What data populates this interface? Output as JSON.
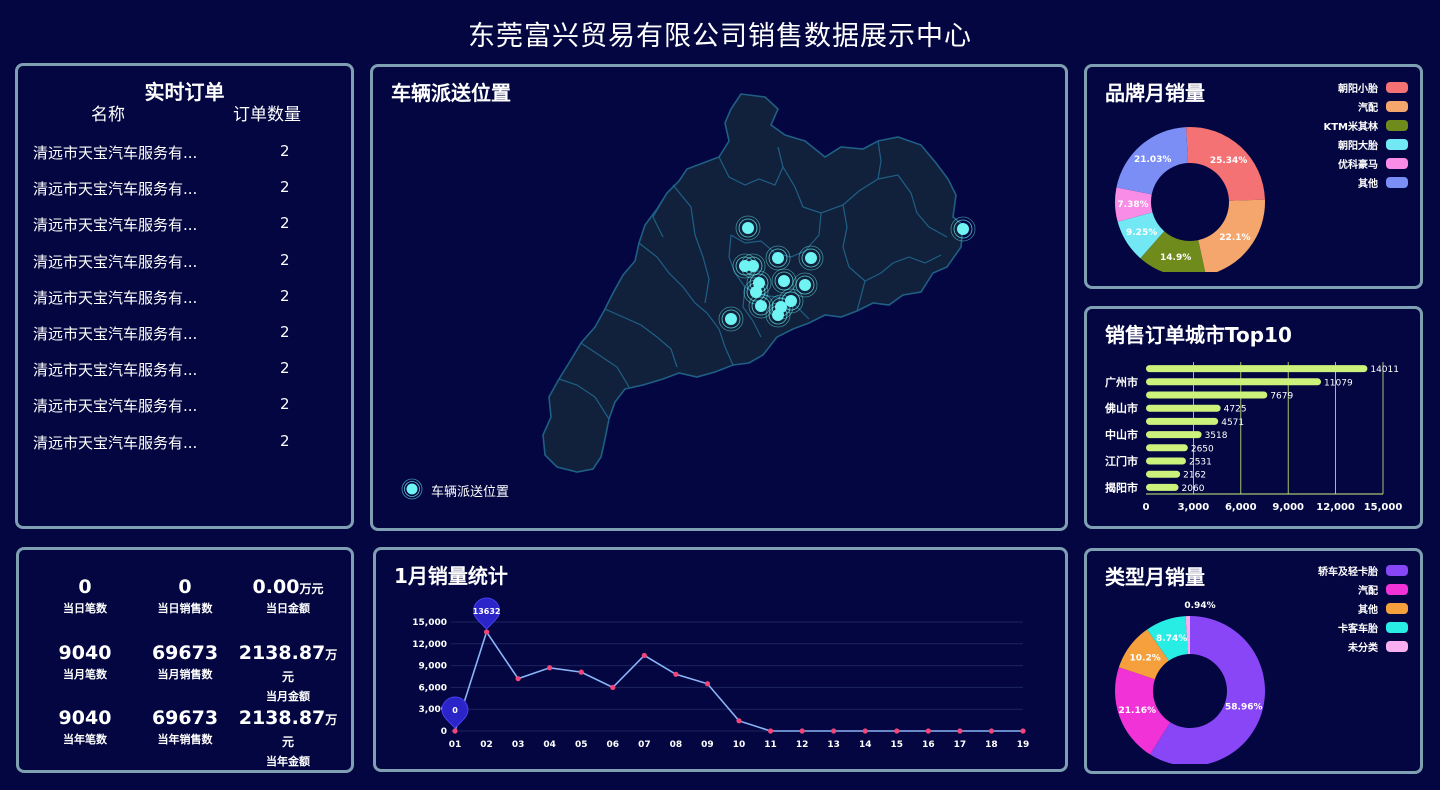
{
  "title": "东莞富兴贸易有限公司销售数据展示中心",
  "orders": {
    "title": "实时订单",
    "col_name": "名称",
    "col_count": "订单数量",
    "rows": [
      {
        "name": "清远市天宝汽车服务有...",
        "count": "2"
      },
      {
        "name": "清远市天宝汽车服务有...",
        "count": "2"
      },
      {
        "name": "清远市天宝汽车服务有...",
        "count": "2"
      },
      {
        "name": "清远市天宝汽车服务有...",
        "count": "2"
      },
      {
        "name": "清远市天宝汽车服务有...",
        "count": "2"
      },
      {
        "name": "清远市天宝汽车服务有...",
        "count": "2"
      },
      {
        "name": "清远市天宝汽车服务有...",
        "count": "2"
      },
      {
        "name": "清远市天宝汽车服务有...",
        "count": "2"
      },
      {
        "name": "清远市天宝汽车服务有...",
        "count": "2"
      }
    ]
  },
  "map": {
    "title": "车辆派送位置",
    "legend": "车辆派送位置",
    "point_color": "#6ff3f3",
    "region_fill": "#11213b",
    "region_stroke": "#1f5f86"
  },
  "stats": [
    {
      "value": "0",
      "unit": "",
      "label": "当日笔数"
    },
    {
      "value": "0",
      "unit": "",
      "label": "当日销售数"
    },
    {
      "value": "0.00",
      "unit": "万元",
      "label": "当日金额"
    },
    {
      "value": "9040",
      "unit": "",
      "label": "当月笔数"
    },
    {
      "value": "69673",
      "unit": "",
      "label": "当月销售数"
    },
    {
      "value": "2138.87",
      "unit": "万元",
      "label": "当月金额"
    },
    {
      "value": "9040",
      "unit": "",
      "label": "当年笔数"
    },
    {
      "value": "69673",
      "unit": "",
      "label": "当年销售数"
    },
    {
      "value": "2138.87",
      "unit": "万元",
      "label": "当年金额"
    }
  ],
  "brand": {
    "title": "品牌月销量",
    "chart_data": {
      "type": "pie",
      "labels": [
        "朝阳小胎",
        "汽配",
        "KTM米其林",
        "朝阳大胎",
        "优科豪马",
        "其他"
      ],
      "values": [
        25.34,
        22.1,
        14.9,
        9.25,
        7.38,
        21.03
      ],
      "value_labels": [
        "25.34%",
        "22.1%",
        "14.9%",
        "9.25%",
        "7.38%",
        "21.03%"
      ],
      "colors": [
        "#f47174",
        "#f4a66d",
        "#6f8b1c",
        "#72e8f4",
        "#f88ce6",
        "#7b8ef6"
      ]
    }
  },
  "city": {
    "title": "销售订单城市Top10",
    "chart_data": {
      "type": "bar",
      "orientation": "horizontal",
      "values": [
        14011,
        11079,
        7679,
        4725,
        4571,
        3518,
        2650,
        2531,
        2162,
        2060
      ],
      "category_labels": [
        "",
        "广州市",
        "",
        "佛山市",
        "",
        "中山市",
        "",
        "江门市",
        "",
        "揭阳市"
      ],
      "xlim": [
        0,
        15000
      ],
      "xticks": [
        "0",
        "3,000",
        "6,000",
        "9,000",
        "12,000",
        "15,000"
      ],
      "xtick_values": [
        0,
        3000,
        6000,
        9000,
        12000,
        15000
      ],
      "bar_color": "#cdf27c",
      "grid": true
    }
  },
  "monthly": {
    "title": "1月销量统计",
    "chart_data": {
      "type": "line",
      "x": [
        "01",
        "02",
        "03",
        "04",
        "05",
        "06",
        "07",
        "08",
        "09",
        "10",
        "11",
        "12",
        "13",
        "14",
        "15",
        "16",
        "17",
        "18",
        "19"
      ],
      "y": [
        0,
        13632,
        7200,
        8700,
        8100,
        6000,
        10400,
        7800,
        6500,
        1400,
        0,
        0,
        0,
        0,
        0,
        0,
        0,
        0,
        0
      ],
      "ylim": [
        0,
        15000
      ],
      "yticks": [
        "0",
        "3,000",
        "6,000",
        "9,000",
        "12,000",
        "15,000"
      ],
      "ytick_values": [
        0,
        3000,
        6000,
        9000,
        12000,
        15000
      ],
      "markers": [
        {
          "label": "13632",
          "index": 1
        },
        {
          "label": "0",
          "index": 0
        }
      ],
      "line_color": "#8ab4f8",
      "point_color": "#f4457a",
      "grid": true
    }
  },
  "type_sales": {
    "title": "类型月销量",
    "chart_data": {
      "type": "pie",
      "labels": [
        "轿车及轻卡胎",
        "汽配",
        "其他",
        "卡客车胎",
        "未分类"
      ],
      "values": [
        58.96,
        21.16,
        10.2,
        8.74,
        0.94
      ],
      "value_labels": [
        "58.96%",
        "21.16%",
        "10.2%",
        "8.74%",
        "0.94%"
      ],
      "colors": [
        "#8846f6",
        "#f032d6",
        "#f5a03c",
        "#27ede5",
        "#f8aef0"
      ]
    }
  }
}
